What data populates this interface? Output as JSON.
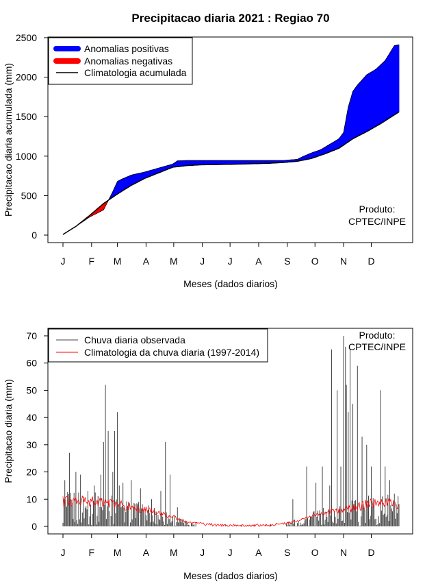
{
  "colors": {
    "positive": "#0000ff",
    "negative": "#ff0000",
    "climatology_line": "#000000",
    "observed_bars": "#444444",
    "climatology_daily": "#ff0000"
  },
  "months": [
    "J",
    "F",
    "M",
    "A",
    "M",
    "J",
    "J",
    "A",
    "S",
    "O",
    "N",
    "D"
  ],
  "month_start_days": [
    1,
    32,
    60,
    91,
    121,
    152,
    182,
    213,
    244,
    274,
    305,
    335
  ],
  "chart_data": [
    {
      "type": "area",
      "title": "Precipitacao diaria 2021 : Regiao 70",
      "xlabel": "Meses (dados diarios)",
      "ylabel": "Precipitacao diaria acumulada (mm)",
      "xlim": [
        1,
        365
      ],
      "ylim": [
        0,
        2500
      ],
      "yticks": [
        0,
        500,
        1000,
        1500,
        2000,
        2500
      ],
      "legend_placement": "top-left",
      "legend": [
        "Anomalias positivas",
        "Anomalias negativas",
        "Climatologia acumulada"
      ],
      "annotation": [
        "Produto:",
        "CPTEC/INPE"
      ],
      "climatology_cumulative": {
        "day": [
          1,
          15,
          30,
          45,
          60,
          75,
          90,
          105,
          120,
          135,
          150,
          165,
          180,
          195,
          210,
          225,
          240,
          255,
          270,
          285,
          300,
          315,
          330,
          345,
          365
        ],
        "mm": [
          8,
          110,
          250,
          400,
          520,
          630,
          720,
          790,
          860,
          880,
          890,
          893,
          896,
          900,
          905,
          910,
          920,
          935,
          970,
          1030,
          1100,
          1220,
          1310,
          1410,
          1560
        ]
      },
      "observed_cumulative": {
        "day": [
          1,
          15,
          30,
          45,
          55,
          60,
          65,
          75,
          90,
          105,
          120,
          125,
          135,
          150,
          180,
          210,
          240,
          255,
          260,
          270,
          280,
          290,
          300,
          305,
          310,
          315,
          320,
          330,
          340,
          350,
          360,
          365
        ],
        "mm": [
          8,
          110,
          230,
          320,
          550,
          680,
          710,
          760,
          800,
          850,
          900,
          940,
          945,
          945,
          945,
          945,
          945,
          960,
          990,
          1040,
          1080,
          1150,
          1220,
          1300,
          1620,
          1820,
          1900,
          2030,
          2100,
          2210,
          2400,
          2410
        ]
      }
    },
    {
      "type": "bar",
      "title": "",
      "xlabel": "Meses (dados diarios)",
      "ylabel": "Precipitacao diaria (mm)",
      "xlim": [
        1,
        365
      ],
      "ylim": [
        0,
        70
      ],
      "yticks": [
        0,
        10,
        20,
        30,
        40,
        50,
        60,
        70
      ],
      "legend_placement": "top-left",
      "legend": [
        "Chuva diaria observada",
        "Climatologia da chuva diaria (1997-2014)"
      ],
      "annotation": [
        "Produto:",
        "CPTEC/INPE"
      ],
      "observed_peaks": {
        "day": [
          3,
          8,
          15,
          20,
          28,
          35,
          42,
          45,
          47,
          50,
          55,
          57,
          60,
          62,
          66,
          75,
          85,
          97,
          107,
          112,
          117,
          125,
          250,
          265,
          275,
          282,
          290,
          292,
          298,
          302,
          305,
          307,
          308,
          310,
          312,
          315,
          320,
          325,
          330,
          335,
          345,
          350,
          355,
          360
        ],
        "mm": [
          17,
          27,
          20,
          19,
          13,
          15,
          19,
          31,
          52,
          35,
          20,
          35,
          42,
          15,
          16,
          17,
          14,
          10,
          13,
          31,
          19,
          7,
          10,
          22,
          16,
          22,
          15,
          65,
          50,
          22,
          70,
          66,
          52,
          42,
          65,
          45,
          59,
          33,
          30,
          22,
          50,
          22,
          17,
          12
        ]
      },
      "climatology_daily": {
        "day": [
          1,
          15,
          30,
          45,
          60,
          75,
          90,
          105,
          120,
          135,
          150,
          165,
          180,
          195,
          210,
          225,
          240,
          255,
          270,
          285,
          300,
          315,
          330,
          345,
          365
        ],
        "mm": [
          9,
          9.5,
          9,
          9,
          8,
          7,
          6,
          5,
          3.5,
          1.5,
          1,
          0.5,
          0.3,
          0.3,
          0.3,
          0.5,
          1,
          2,
          4,
          5,
          6,
          7,
          8,
          9,
          8
        ]
      }
    }
  ]
}
